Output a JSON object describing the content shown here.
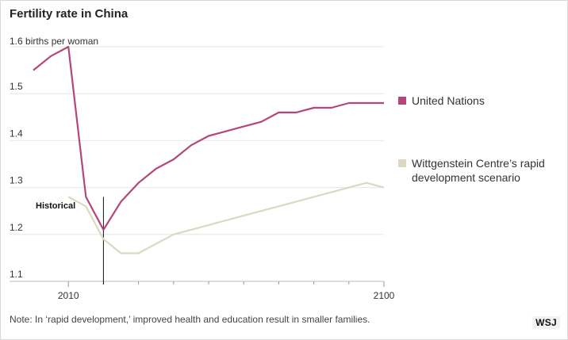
{
  "chart_data": {
    "type": "line",
    "title": "Fertility rate in China",
    "unit_label": "1.6 births per woman",
    "y_ticks": [
      "1.6",
      "1.5",
      "1.4",
      "1.3",
      "1.2",
      "1.1"
    ],
    "y_tick_values": [
      1.6,
      1.5,
      1.4,
      1.3,
      1.2,
      1.1
    ],
    "x_ticks": [
      "2010",
      "2100"
    ],
    "x_tick_values": [
      2010,
      2100
    ],
    "xlim": [
      2000,
      2100
    ],
    "ylim": [
      1.1,
      1.6
    ],
    "grid": true,
    "legend_position": "right",
    "series": [
      {
        "name": "United Nations",
        "color": "#b5467a",
        "x": [
          2000,
          2005,
          2010,
          2015,
          2020,
          2025,
          2030,
          2035,
          2040,
          2045,
          2050,
          2055,
          2060,
          2065,
          2070,
          2075,
          2080,
          2085,
          2090,
          2095,
          2100
        ],
        "y": [
          1.55,
          1.58,
          1.6,
          1.28,
          1.21,
          1.27,
          1.31,
          1.34,
          1.36,
          1.39,
          1.41,
          1.42,
          1.43,
          1.44,
          1.46,
          1.46,
          1.47,
          1.47,
          1.48,
          1.48,
          1.48
        ]
      },
      {
        "name": "Wittgenstein Centre's rapid development scenario",
        "color": "#ddd8c0",
        "x": [
          2010,
          2015,
          2020,
          2025,
          2030,
          2035,
          2040,
          2045,
          2050,
          2055,
          2060,
          2065,
          2070,
          2075,
          2080,
          2085,
          2090,
          2095,
          2100
        ],
        "y": [
          1.28,
          1.26,
          1.19,
          1.16,
          1.16,
          1.18,
          1.2,
          1.21,
          1.22,
          1.23,
          1.24,
          1.25,
          1.26,
          1.27,
          1.28,
          1.29,
          1.3,
          1.31,
          1.3
        ]
      }
    ],
    "annotation": {
      "label": "Historical",
      "x": 2020
    }
  },
  "legend": {
    "un_label": "United Nations",
    "wc_label": "Wittgenstein Centre’s rapid development scenario"
  },
  "note": "Note: In ‘rapid development,’ improved health and education result in smaller families.",
  "logo": "WSJ"
}
